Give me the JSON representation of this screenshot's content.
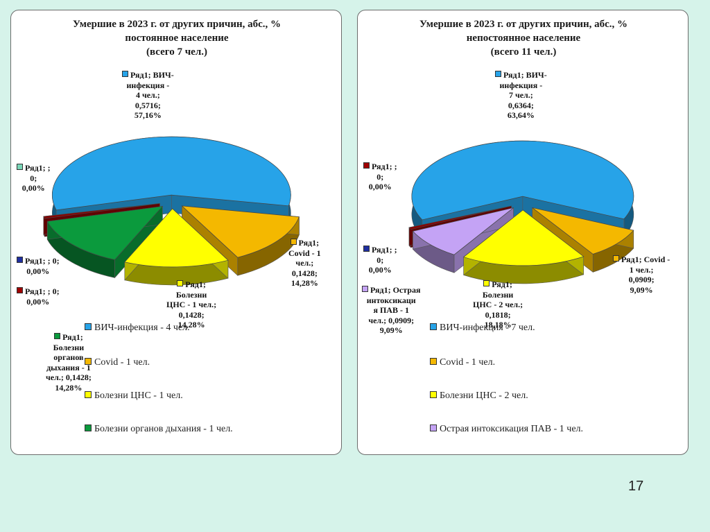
{
  "page": {
    "number": "17"
  },
  "chart_data": [
    {
      "type": "pie",
      "title_lines": [
        "Умершие в 2023 г. от других причин, абс., %",
        "постоянное население",
        "(всего 7 чел.)"
      ],
      "slices": [
        {
          "name": "ВИЧ-инфекция",
          "value": 0.5716,
          "color": "#27a3e8"
        },
        {
          "name": "Covid",
          "value": 0.1428,
          "color": "#f4b800"
        },
        {
          "name": "Болезни ЦНС",
          "value": 0.1428,
          "color": "#ffff00"
        },
        {
          "name": "Болезни органов дыхания",
          "value": 0.1428,
          "color": "#0b9a3d"
        },
        {
          "name": "",
          "value": 0,
          "color": "#8b0000"
        }
      ],
      "labels": [
        {
          "lines": [
            "Ряд1; ВИЧ-",
            "инфекция -",
            "4 чел.;",
            "0,5716;",
            "57,16%"
          ],
          "marker": "#27a3e8"
        },
        {
          "lines": [
            "Ряд1;",
            "Covid - 1",
            "чел.;",
            "0,1428;",
            "14,28%"
          ],
          "marker": "#f4b800"
        },
        {
          "lines": [
            "Ряд1;",
            "Болезни",
            "ЦНС - 1 чел.;",
            "0,1428;",
            "14,28%"
          ],
          "marker": "#ffff00"
        },
        {
          "lines": [
            "Ряд1;",
            "Болезни",
            "органов",
            "дыхания - 1",
            "чел.; 0,1428;",
            "14,28%"
          ],
          "marker": "#0b9a3d"
        },
        {
          "lines": [
            "Ряд1; ;",
            "0;",
            "0,00%"
          ],
          "marker": "#7ad6b8"
        },
        {
          "lines": [
            "Ряд1; ; 0;",
            "0,00%"
          ],
          "marker": "#1f2fa0"
        },
        {
          "lines": [
            "Ряд1; ; 0;",
            "0,00%"
          ],
          "marker": "#a00000"
        }
      ],
      "legend": [
        {
          "text": "ВИЧ-инфекция -  4 чел.",
          "color": "#27a3e8"
        },
        {
          "text": "Covid - 1 чел.",
          "color": "#f4b800"
        },
        {
          "text": "Болезни ЦНС - 1 чел.",
          "color": "#ffff00"
        },
        {
          "text": "Болезни органов дыхания - 1 чел.",
          "color": "#0b9a3d"
        }
      ]
    },
    {
      "type": "pie",
      "title_lines": [
        "Умершие в 2023 г. от других причин, абс., %",
        "непостоянное население",
        "(всего 11 чел.)"
      ],
      "slices": [
        {
          "name": "ВИЧ-инфекция",
          "value": 0.6364,
          "color": "#27a3e8"
        },
        {
          "name": "Covid",
          "value": 0.0909,
          "color": "#f4b800"
        },
        {
          "name": "Болезни ЦНС",
          "value": 0.1818,
          "color": "#ffff00"
        },
        {
          "name": "Острая интоксикация ПАВ",
          "value": 0.0909,
          "color": "#c4a3f5"
        },
        {
          "name": "",
          "value": 0,
          "color": "#8b0000"
        }
      ],
      "labels": [
        {
          "lines": [
            "Ряд1; ВИЧ-",
            "инфекция -",
            "7 чел.;",
            "0,6364;",
            "63,64%"
          ],
          "marker": "#27a3e8"
        },
        {
          "lines": [
            "Ряд1; Covid -",
            "1 чел.;",
            "0,0909;",
            "9,09%"
          ],
          "marker": "#f4b800"
        },
        {
          "lines": [
            "Ряд1;",
            "Болезни",
            "ЦНС - 2 чел.;",
            "0,1818;",
            "18,18%"
          ],
          "marker": "#ffff00"
        },
        {
          "lines": [
            "Ряд1; Острая",
            "интоксикаци",
            "я ПАВ - 1",
            "чел.; 0,0909;",
            "9,09%"
          ],
          "marker": "#c4a3f5"
        },
        {
          "lines": [
            "Ряд1; ;",
            "0;",
            "0,00%"
          ],
          "marker": "#a00000"
        },
        {
          "lines": [
            "Ряд1; ;",
            "0;",
            "0,00%"
          ],
          "marker": "#1f2fa0"
        }
      ],
      "legend": [
        {
          "text": "ВИЧ-инфекция -  7 чел.",
          "color": "#27a3e8"
        },
        {
          "text": "Covid -  1 чел.",
          "color": "#f4b800"
        },
        {
          "text": "Болезни ЦНС - 2 чел.",
          "color": "#ffff00"
        },
        {
          "text": "Острая интоксикация ПАВ - 1 чел.",
          "color": "#c4a3f5"
        }
      ]
    }
  ]
}
